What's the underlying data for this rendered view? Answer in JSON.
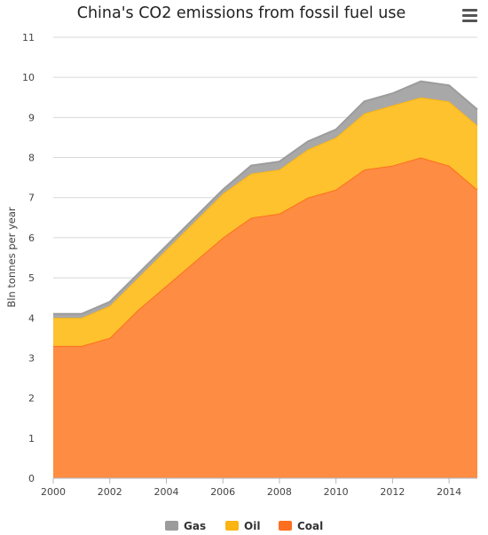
{
  "chart_data": {
    "type": "area",
    "stacked": true,
    "title": "China's CO2 emissions from fossil fuel use",
    "xlabel": "",
    "ylabel": "Bln tonnes per year",
    "x": [
      2000,
      2001,
      2002,
      2003,
      2004,
      2005,
      2006,
      2007,
      2008,
      2009,
      2010,
      2011,
      2012,
      2013,
      2014,
      2015
    ],
    "xticks": [
      2000,
      2002,
      2004,
      2006,
      2008,
      2010,
      2012,
      2014
    ],
    "xlim": [
      2000,
      2015
    ],
    "ylim": [
      0,
      11
    ],
    "yticks": [
      0,
      1,
      2,
      3,
      4,
      5,
      6,
      7,
      8,
      9,
      10,
      11
    ],
    "grid": true,
    "legend_position": "bottom-center",
    "series": [
      {
        "name": "Coal",
        "color": "#fd6f1e",
        "fill": "#fe8c42",
        "values": [
          3.3,
          3.3,
          3.5,
          4.2,
          4.8,
          5.4,
          6.0,
          6.5,
          6.6,
          7.0,
          7.2,
          7.7,
          7.8,
          8.0,
          7.8,
          7.2
        ]
      },
      {
        "name": "Oil",
        "color": "#fab515",
        "fill": "#fdc22e",
        "values": [
          0.7,
          0.7,
          0.8,
          0.8,
          0.9,
          1.0,
          1.1,
          1.1,
          1.1,
          1.2,
          1.3,
          1.4,
          1.5,
          1.5,
          1.6,
          1.6
        ]
      },
      {
        "name": "Gas",
        "color": "#9c9c9c",
        "fill": "#a8a8a8",
        "values": [
          0.1,
          0.1,
          0.1,
          0.1,
          0.1,
          0.1,
          0.1,
          0.2,
          0.2,
          0.2,
          0.2,
          0.3,
          0.3,
          0.4,
          0.4,
          0.4
        ]
      }
    ],
    "legend_order": [
      "Gas",
      "Oil",
      "Coal"
    ]
  }
}
